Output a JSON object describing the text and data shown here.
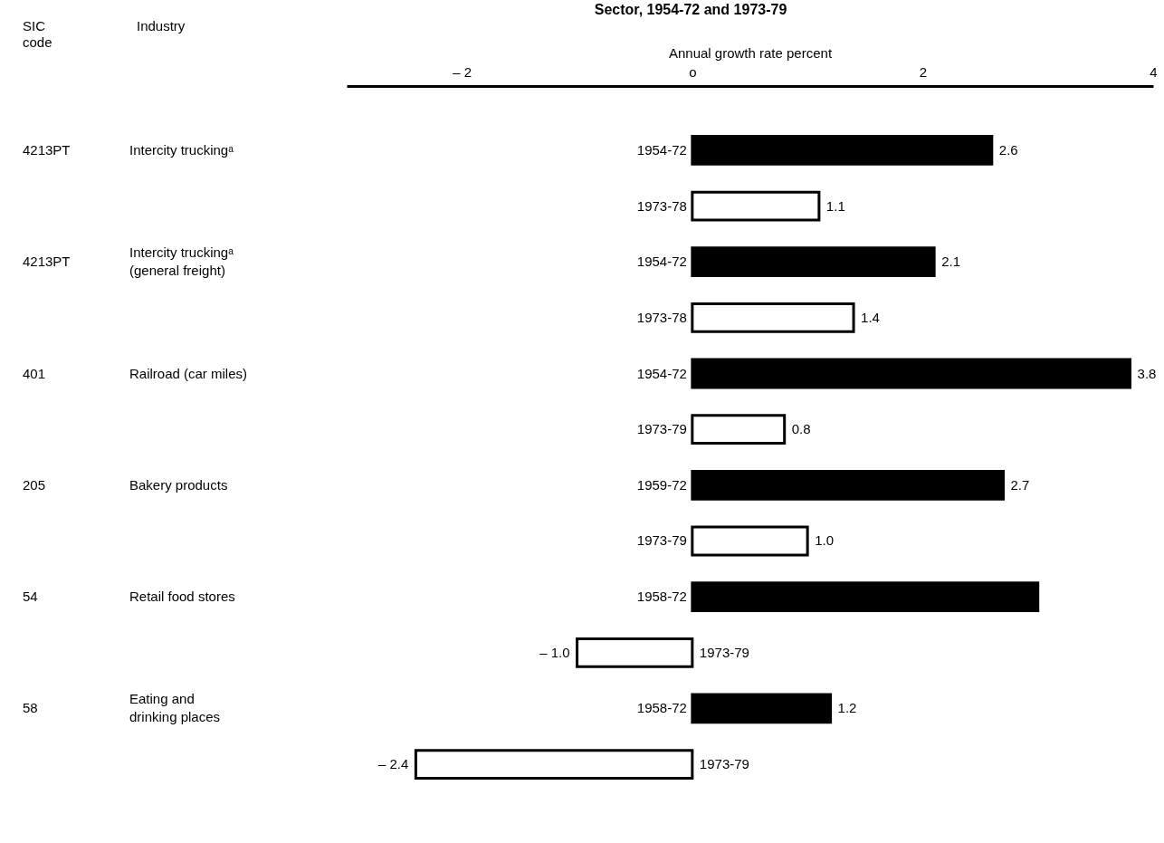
{
  "chart_data": {
    "type": "bar",
    "orientation": "horizontal",
    "title": "Sector, 1954-72 and 1973-79",
    "xlabel": "Annual growth rate percent",
    "categories": [
      "1954-72",
      "1973-78",
      "1954-72",
      "1973-78",
      "1954-72",
      "1973-79",
      "1959-72",
      "1973-79",
      "1958-72",
      "1973-79",
      "1958-72",
      "1973-79"
    ],
    "values": [
      2.6,
      1.1,
      2.1,
      1.4,
      3.8,
      0.8,
      2.7,
      1.0,
      3.0,
      -1.0,
      1.2,
      -2.4
    ],
    "colors": [
      "#000000",
      "#ffffff",
      "#000000",
      "#ffffff",
      "#000000",
      "#ffffff",
      "#000000",
      "#ffffff",
      "#000000",
      "#ffffff",
      "#000000",
      "#ffffff"
    ],
    "value_labels": [
      "2.6",
      "1.1",
      "2.1",
      "1.4",
      "3.8",
      "0.8",
      "2.7",
      "1.0",
      null,
      "– 1.0",
      "1.2",
      "– 2.4"
    ],
    "xlim": [
      -3,
      4
    ],
    "xticks": [
      {
        "value": -2,
        "label": "– 2"
      },
      {
        "value": 0,
        "label": "o"
      },
      2,
      4
    ],
    "annotations": [
      "SIC\ncode",
      "Industry",
      "4213PT",
      "Intercity truckingᵃ",
      "4213PT",
      "Intercity truckingᵃ\n(general freight)",
      "401",
      "Railroad (car miles)",
      "205",
      "Bakery products",
      "54",
      "Retail food stores",
      "58",
      "Eating and\ndrinking places"
    ],
    "grid": false
  }
}
